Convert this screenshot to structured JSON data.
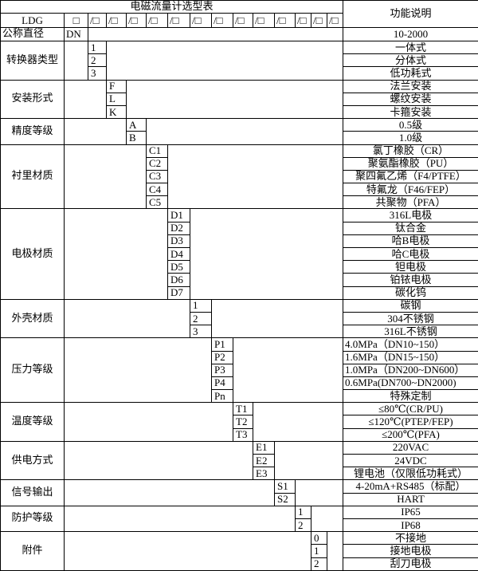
{
  "title": "电磁流量计选型表",
  "description_header": "功能说明",
  "model_row": {
    "model": "LDG",
    "first_slot": "□",
    "slots": [
      "/□",
      "/□",
      "/□",
      "/□",
      "/□",
      "/□",
      "/□",
      "/□",
      "/□",
      "/□",
      "/□",
      "/□",
      "/□"
    ]
  },
  "nominal_diameter": {
    "label": "公称直径",
    "code": "DN",
    "description": "10-2000"
  },
  "groups": [
    {
      "label": "转换器类型",
      "codes": [
        "1",
        "2",
        "3"
      ],
      "descriptions": [
        "一体式",
        "分体式",
        "低功耗式"
      ]
    },
    {
      "label": "安装形式",
      "codes": [
        "F",
        "L",
        "K"
      ],
      "descriptions": [
        "法兰安装",
        "螺纹安装",
        "卡箍安装"
      ]
    },
    {
      "label": "精度等级",
      "codes": [
        "A",
        "B"
      ],
      "descriptions": [
        "0.5级",
        "1.0级"
      ]
    },
    {
      "label": "衬里材质",
      "codes": [
        "C1",
        "C2",
        "C3",
        "C4",
        "C5"
      ],
      "descriptions": [
        "氯丁橡胶（CR）",
        "聚氨酯橡胶（PU）",
        "聚四氟乙烯（F4/PTFE）",
        "特氟龙（F46/FEP）",
        "共聚物（PFA）"
      ]
    },
    {
      "label": "电极材质",
      "codes": [
        "D1",
        "D2",
        "D3",
        "D4",
        "D5",
        "D6",
        "D7"
      ],
      "descriptions": [
        "316L电极",
        "钛合金",
        "哈B电极",
        "哈C电极",
        "钽电极",
        "铂铱电极",
        "碳化钨"
      ]
    },
    {
      "label": "外壳材质",
      "codes": [
        "1",
        "2",
        "3"
      ],
      "descriptions": [
        "碳钢",
        "304不锈钢",
        "316L不锈钢"
      ]
    },
    {
      "label": "压力等级",
      "codes": [
        "P1",
        "P2",
        "P3",
        "P4",
        "Pn"
      ],
      "descriptions": [
        "4.0MPa（DN10~150）",
        "1.6MPa（DN15~150）",
        "1.0MPa（DN200~DN600）",
        "0.6MPa(DN700~DN2000)",
        "特殊定制"
      ]
    },
    {
      "label": "温度等级",
      "codes": [
        "T1",
        "T2",
        "T3"
      ],
      "descriptions": [
        "≤80℃(CR/PU)",
        "≤120℃(PTEP/FEP)",
        "≤200℃(PFA)"
      ]
    },
    {
      "label": "供电方式",
      "codes": [
        "E1",
        "E2",
        "E3"
      ],
      "descriptions": [
        "220VAC",
        "24VDC",
        "锂电池（仅限低功耗式）"
      ]
    },
    {
      "label": "信号输出",
      "codes": [
        "S1",
        "S2"
      ],
      "descriptions": [
        "4-20mA+RS485（标配）",
        "HART"
      ]
    },
    {
      "label": "防护等级",
      "codes": [
        "1",
        "2"
      ],
      "descriptions": [
        "IP65",
        "IP68"
      ]
    },
    {
      "label": "附件",
      "codes": [
        "0",
        "1",
        "2"
      ],
      "descriptions": [
        "不接地",
        "接地电极",
        "刮刀电极"
      ]
    }
  ]
}
